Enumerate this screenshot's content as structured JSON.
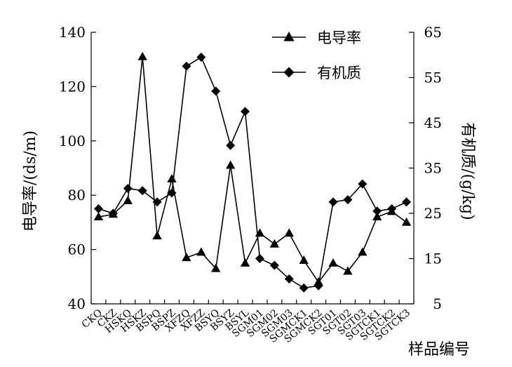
{
  "chart_data": {
    "type": "line",
    "categories": [
      "CKQ",
      "CKZ",
      "HSKQ",
      "HSKZ",
      "BSPQ",
      "BSPZ",
      "XFZQ",
      "XFZZ",
      "BSYQ",
      "BSYZ",
      "BSYL",
      "SGM01",
      "SGM02",
      "SGM03",
      "SGMCK1",
      "SGMCK2",
      "SGT01",
      "SGT02",
      "SGT03",
      "SGTCK1",
      "SGTCK2",
      "SGTCK3"
    ],
    "series": [
      {
        "name": "电导率",
        "axis": "left",
        "marker": "triangle",
        "values": [
          72,
          73,
          78,
          131,
          65,
          86,
          57,
          59,
          53,
          91,
          55,
          66,
          62,
          66,
          56,
          48,
          55,
          52,
          59,
          72,
          74,
          70
        ]
      },
      {
        "name": "有机质",
        "axis": "right",
        "marker": "diamond",
        "values": [
          26,
          25,
          30.5,
          30,
          27.5,
          29.5,
          57.5,
          59.5,
          52,
          40,
          47.5,
          15,
          13.5,
          10.5,
          8.5,
          9,
          27.5,
          28,
          31.5,
          25.5,
          26,
          27.5
        ]
      }
    ],
    "xlabel": "样品编号",
    "ylabel": "电导率/(ds/m)",
    "y2label": "有机质/(g/kg)",
    "ylim": [
      40,
      140
    ],
    "yticks": [
      40,
      60,
      80,
      100,
      120,
      140
    ],
    "y2lim": [
      5,
      65
    ],
    "y2ticks": [
      5,
      15,
      25,
      35,
      45,
      55,
      65
    ],
    "legend": "top-right",
    "grid": false
  }
}
